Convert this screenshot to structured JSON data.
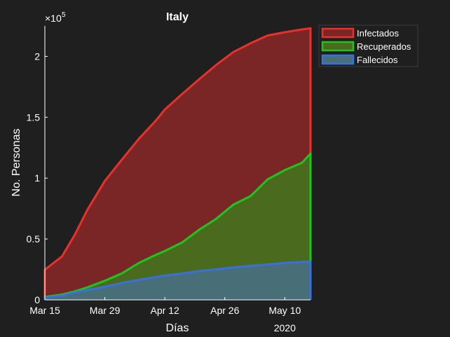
{
  "chart_data": {
    "type": "area",
    "title": "Italy",
    "xlabel": "Días",
    "ylabel": "No. Personas",
    "y_exponent_label": "×10",
    "y_exponent": "5",
    "year_label": "2020",
    "x_tick_labels": [
      "Mar 15",
      "Mar 29",
      "Apr 12",
      "Apr 26",
      "May 10"
    ],
    "x_tick_days": [
      0,
      14,
      28,
      42,
      56
    ],
    "y_tick_labels": [
      "0",
      "0.5",
      "1",
      "1.5",
      "2"
    ],
    "y_tick_values": [
      0,
      50000,
      100000,
      150000,
      200000
    ],
    "xlim": [
      0,
      62
    ],
    "ylim": [
      0,
      225000
    ],
    "legend_position": "outside-top-right",
    "x_days": [
      0,
      4,
      7,
      10,
      14,
      18,
      22,
      26,
      28,
      32,
      36,
      40,
      44,
      48,
      52,
      56,
      60,
      62
    ],
    "series": [
      {
        "name": "Infectados",
        "color": "#e8312a",
        "fill": "#7a2626",
        "values": [
          24747,
          35713,
          53578,
          74386,
          97689,
          115242,
          132547,
          147577,
          156363,
          168941,
          181228,
          192994,
          203591,
          210717,
          217185,
          219814,
          222104,
          223096
        ]
      },
      {
        "name": "Recuperados",
        "color": "#1fc41f",
        "fill": "#4a6b1e",
        "values": [
          2335,
          4440,
          7024,
          10361,
          15729,
          21815,
          30455,
          37130,
          40164,
          47055,
          57576,
          66624,
          78249,
          85231,
          99023,
          106587,
          112541,
          120205
        ]
      },
      {
        "name": "Fallecidos",
        "color": "#3a6fe0",
        "fill": "#486e78",
        "values": [
          1809,
          3405,
          6077,
          8165,
          10779,
          13915,
          16523,
          18849,
          19899,
          21645,
          23660,
          25085,
          26644,
          27967,
          29079,
          30395,
          31106,
          31368
        ]
      }
    ]
  }
}
